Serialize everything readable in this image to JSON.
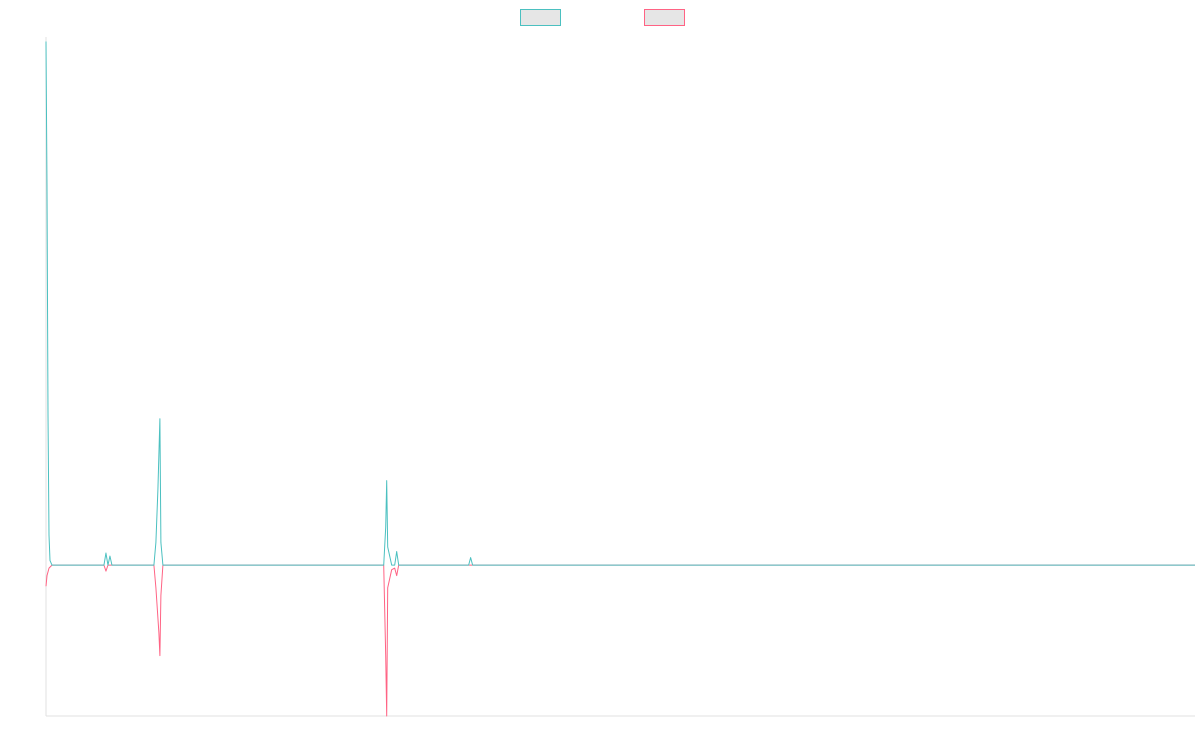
{
  "colors": {
    "series_a": "#4bc0c0",
    "series_b": "#ff6384",
    "legend_fill": "#e6e6e6",
    "axis": "#e0e0e0",
    "background": "#ffffff"
  },
  "legend": {
    "placement": "top-center",
    "items": [
      {
        "series": 0,
        "label": ""
      },
      {
        "series": 1,
        "label": ""
      }
    ]
  },
  "chart_data": {
    "type": "line",
    "title": "",
    "xlabel": "",
    "ylabel": "",
    "grid": false,
    "show_tick_labels": false,
    "ylim": [
      -100,
      350
    ],
    "xlim": [
      0,
      1150
    ],
    "series": [
      {
        "color": "#4bc0c0",
        "points": [
          [
            0,
            347
          ],
          [
            1,
            250
          ],
          [
            2,
            100
          ],
          [
            3,
            20
          ],
          [
            4,
            3
          ],
          [
            6,
            0
          ],
          [
            58,
            0
          ],
          [
            60,
            8
          ],
          [
            62,
            0
          ],
          [
            64,
            6
          ],
          [
            66,
            0
          ],
          [
            108,
            0
          ],
          [
            110,
            15
          ],
          [
            112,
            50
          ],
          [
            114,
            97
          ],
          [
            115,
            15
          ],
          [
            117,
            0
          ],
          [
            338,
            0
          ],
          [
            340,
            25
          ],
          [
            341,
            56
          ],
          [
            342,
            12
          ],
          [
            346,
            0
          ],
          [
            349,
            0
          ],
          [
            351,
            9
          ],
          [
            353,
            0
          ],
          [
            423,
            0
          ],
          [
            425,
            5
          ],
          [
            427,
            0
          ],
          [
            1150,
            0
          ]
        ]
      },
      {
        "color": "#ff6384",
        "points": [
          [
            0,
            -14
          ],
          [
            1,
            -7
          ],
          [
            3,
            -2
          ],
          [
            6,
            0
          ],
          [
            58,
            0
          ],
          [
            60,
            -4
          ],
          [
            62,
            0
          ],
          [
            108,
            0
          ],
          [
            110,
            -15
          ],
          [
            113,
            -45
          ],
          [
            114,
            -60
          ],
          [
            115,
            -20
          ],
          [
            117,
            0
          ],
          [
            338,
            0
          ],
          [
            340,
            -60
          ],
          [
            341,
            -100
          ],
          [
            342,
            -15
          ],
          [
            346,
            -3
          ],
          [
            349,
            -2
          ],
          [
            351,
            -7
          ],
          [
            353,
            0
          ],
          [
            1150,
            0
          ]
        ]
      }
    ]
  }
}
